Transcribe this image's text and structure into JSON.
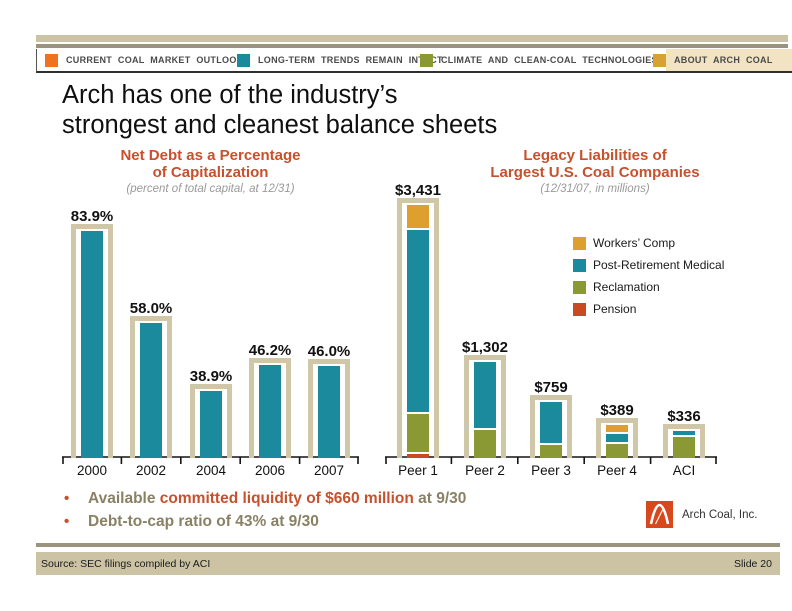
{
  "palette": {
    "accent": "#C6512C",
    "muted_text": "#8A8165",
    "tan_rule": "#CBC3A4",
    "frame_tan": "#CFC7A8",
    "gray_rule": "#9A947E",
    "active_tab_bg": "#F2E3C2",
    "teal": "#1B8A9C",
    "olive": "#8A9933",
    "gold": "#D8A133",
    "orange": "#EE7320",
    "pension_red": "#C94A22",
    "logo_red": "#D8481D"
  },
  "nav": {
    "tabs": [
      {
        "label": "CURRENT COAL MARKET OUTLOOK",
        "color": "#EE7320",
        "active": false
      },
      {
        "label": "LONG-TERM TRENDS REMAIN INTACT",
        "color": "#1B8A9C",
        "active": false
      },
      {
        "label": "CLIMATE AND CLEAN-COAL TECHNOLOGIES",
        "color": "#8A9933",
        "active": false
      },
      {
        "label": "ABOUT ARCH COAL",
        "color": "#D8A133",
        "active": true
      }
    ]
  },
  "title": {
    "line1": "Arch has one of the industry’s",
    "line2": "strongest and cleanest balance sheets"
  },
  "chart_data": [
    {
      "type": "bar",
      "title": "Net Debt as a Percentage of Capitalization",
      "title_lines": [
        "Net Debt as a Percentage",
        "of Capitalization"
      ],
      "subtitle": "(percent of total capital, at 12/31)",
      "categories": [
        "2000",
        "2002",
        "2004",
        "2006",
        "2007"
      ],
      "values": [
        83.9,
        58.0,
        38.9,
        46.2,
        46.0
      ],
      "value_labels": [
        "83.9%",
        "58.0%",
        "38.9%",
        "46.2%",
        "46.0%"
      ],
      "bar_color": "#1B8A9C",
      "frame_color": "#CFC7A8",
      "ylim": [
        20,
        92
      ],
      "grid": false,
      "legend_position": "none"
    },
    {
      "type": "stacked-bar",
      "title": "Legacy Liabilities of Largest U.S. Coal Companies",
      "title_lines": [
        "Legacy Liabilities of",
        "Largest U.S. Coal Companies"
      ],
      "subtitle": "(12/31/07, in millions)",
      "categories": [
        "Peer 1",
        "Peer 2",
        "Peer 3",
        "Peer 4",
        "ACI"
      ],
      "totals": [
        3431,
        1302,
        759,
        389,
        336
      ],
      "total_labels": [
        "$3,431",
        "$1,302",
        "$759",
        "$389",
        "$336"
      ],
      "series": [
        {
          "name": "Workers’ Comp",
          "color": "#DDA02F",
          "values": [
            320,
            0,
            0,
            95,
            0
          ]
        },
        {
          "name": "Post-Retirement Medical",
          "color": "#1B8A9C",
          "values": [
            2530,
            910,
            575,
            105,
            46
          ]
        },
        {
          "name": "Reclamation",
          "color": "#8A9933",
          "values": [
            530,
            392,
            184,
            189,
            290
          ]
        },
        {
          "name": "Pension",
          "color": "#C94A22",
          "values": [
            51,
            0,
            0,
            0,
            0
          ]
        }
      ],
      "frame_color": "#CFC7A8",
      "ylim": [
        0,
        3431
      ],
      "grid": false,
      "legend_position": "upper-right-inside"
    }
  ],
  "bullets": [
    {
      "segments": [
        {
          "text": "Available "
        },
        {
          "text": "committed liquidity of $660 million"
        },
        {
          "text": " at 9/30"
        }
      ]
    },
    {
      "segments": [
        {
          "text": "Debt-to-cap ratio of 43% at 9/30"
        }
      ]
    }
  ],
  "logo": {
    "text": "Arch Coal, Inc."
  },
  "footer": {
    "source": "Source: SEC filings compiled by ACI",
    "slide": "Slide 20"
  }
}
